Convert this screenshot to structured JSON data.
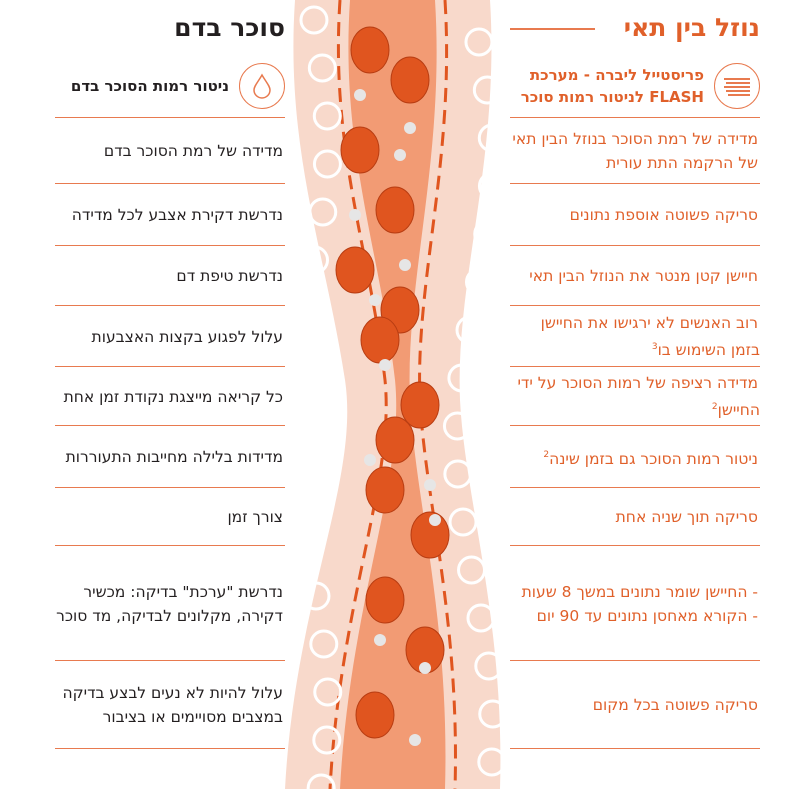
{
  "colors": {
    "accent": "#e0602a",
    "text": "#231f20",
    "vessel_outer": "#f8d9cb",
    "vessel_inner": "#f29b74",
    "cell": "#e0551f"
  },
  "left": {
    "title": "סוכר בדם",
    "header": {
      "icon": "blood-drop-icon",
      "text": "ניטור רמות הסוכר בדם"
    },
    "rows": [
      {
        "text": "מדידה של רמת הסוכר בדם"
      },
      {
        "text": "נדרשת דקירת אצבע לכל מדידה"
      },
      {
        "text": "נדרשת טיפת דם"
      },
      {
        "text": "עלול לפגוע בקצות האצבעות"
      },
      {
        "text": "כל קריאה מייצגת נקודת זמן אחת"
      },
      {
        "text": "מדידות בלילה מחייבות התעוררות"
      },
      {
        "text": "צורך זמן"
      },
      {
        "text": "נדרשת \"ערכת\" בדיקה: מכשיר דקירה, מקלונים לבדיקה, מד סוכר"
      },
      {
        "text": "עלול להיות לא נעים לבצע בדיקה במצבים מסויימים או בציבור"
      }
    ]
  },
  "right": {
    "title": "נוזל בין תאי",
    "header": {
      "icon": "flash-sensor-icon",
      "text": "פריסטייל ליברה - מערכת FLASH לניטור רמות סוכר"
    },
    "rows": [
      {
        "text": "מדידה של רמת הסוכר בנוזל הבין תאי של הרקמה התת עורית"
      },
      {
        "text": "סריקה פשוטה אוספת נתונים"
      },
      {
        "text": "חיישן קטן מנטר את הנוזל הבין תאי"
      },
      {
        "text": "רוב האנשים לא ירגישו את החיישן בזמן השימוש בו",
        "sup": "3"
      },
      {
        "text": "מדידה רציפה של רמות הסוכר על ידי החיישן",
        "sup": "2"
      },
      {
        "text": "ניטור רמות הסוכר גם בזמן שינה",
        "sup": "2"
      },
      {
        "text": "סריקה תוך שניה אחת"
      },
      {
        "text": "- החיישן שומר נתונים במשך 8 שעות\n- הקורא מאחסן נתונים עד 90 יום"
      },
      {
        "text": "סריקה פשוטה בכל מקום"
      }
    ]
  }
}
